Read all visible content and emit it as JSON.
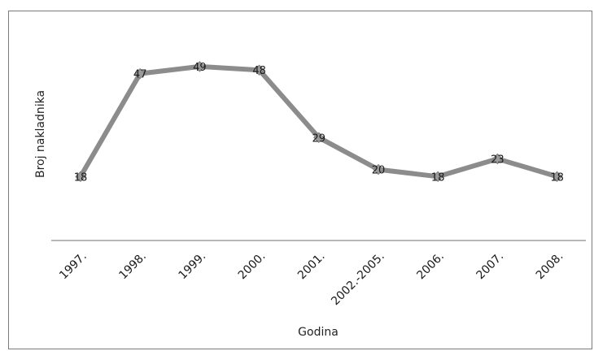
{
  "chart_data": {
    "type": "line",
    "title": "",
    "xlabel": "Godina",
    "ylabel": "Broj nakladnika",
    "categories": [
      "1997.",
      "1998.",
      "1999.",
      "2000.",
      "2001.",
      "2002.-2005.",
      "2006.",
      "2007.",
      "2008."
    ],
    "series": [
      {
        "values": [
          18,
          47,
          49,
          48,
          29,
          20,
          18,
          23,
          18
        ]
      }
    ],
    "data_labels": [
      "18",
      "47",
      "49",
      "48",
      "29",
      "20",
      "18",
      "23",
      "18"
    ],
    "ylim": [
      0,
      60
    ],
    "grid": false,
    "legend": "none",
    "line_color": "#8c8c8c",
    "marker_color": "#9a9a9a"
  }
}
